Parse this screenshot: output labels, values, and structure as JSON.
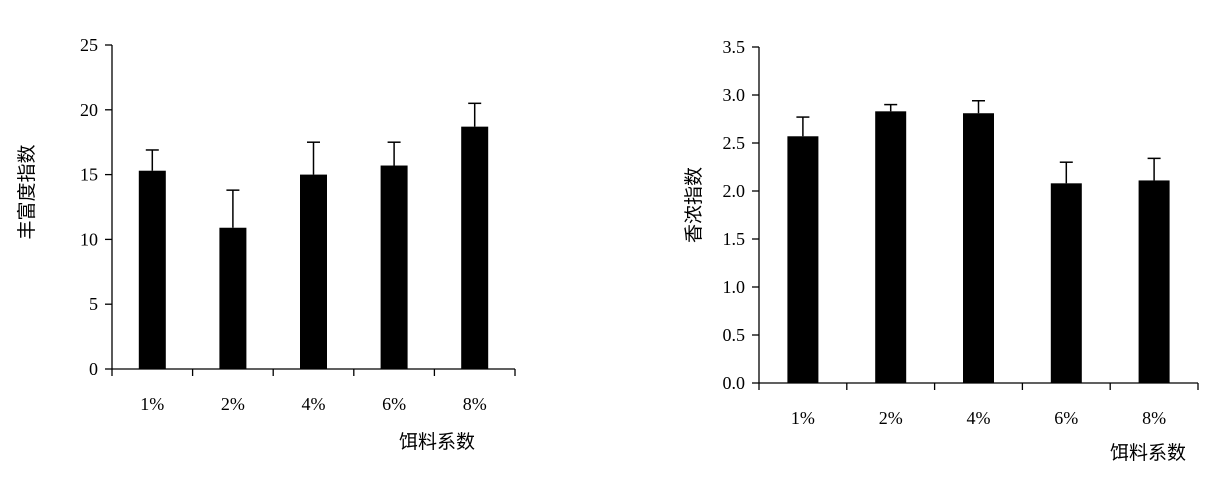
{
  "chart_data": [
    {
      "type": "bar",
      "categories": [
        "1%",
        "2%",
        "4%",
        "6%",
        "8%"
      ],
      "values": [
        15.3,
        10.9,
        15.0,
        15.7,
        18.7
      ],
      "error": [
        1.6,
        2.9,
        2.5,
        1.8,
        1.8
      ],
      "ylim": [
        0,
        25
      ],
      "yticks": [
        "0",
        "5",
        "10",
        "15",
        "20",
        "25"
      ],
      "xlabel": "饵料系数",
      "ylabel": "丰富度指数",
      "bar_color": "#000000"
    },
    {
      "type": "bar",
      "categories": [
        "1%",
        "2%",
        "4%",
        "6%",
        "8%"
      ],
      "values": [
        2.57,
        2.83,
        2.81,
        2.08,
        2.11
      ],
      "error": [
        0.2,
        0.07,
        0.13,
        0.22,
        0.23
      ],
      "ylim": [
        0,
        3.5
      ],
      "yticks": [
        "0.0",
        "0.5",
        "1.0",
        "1.5",
        "2.0",
        "2.5",
        "3.0",
        "3.5"
      ],
      "xlabel": "饵料系数",
      "ylabel": "香浓指数",
      "bar_color": "#000000"
    }
  ]
}
